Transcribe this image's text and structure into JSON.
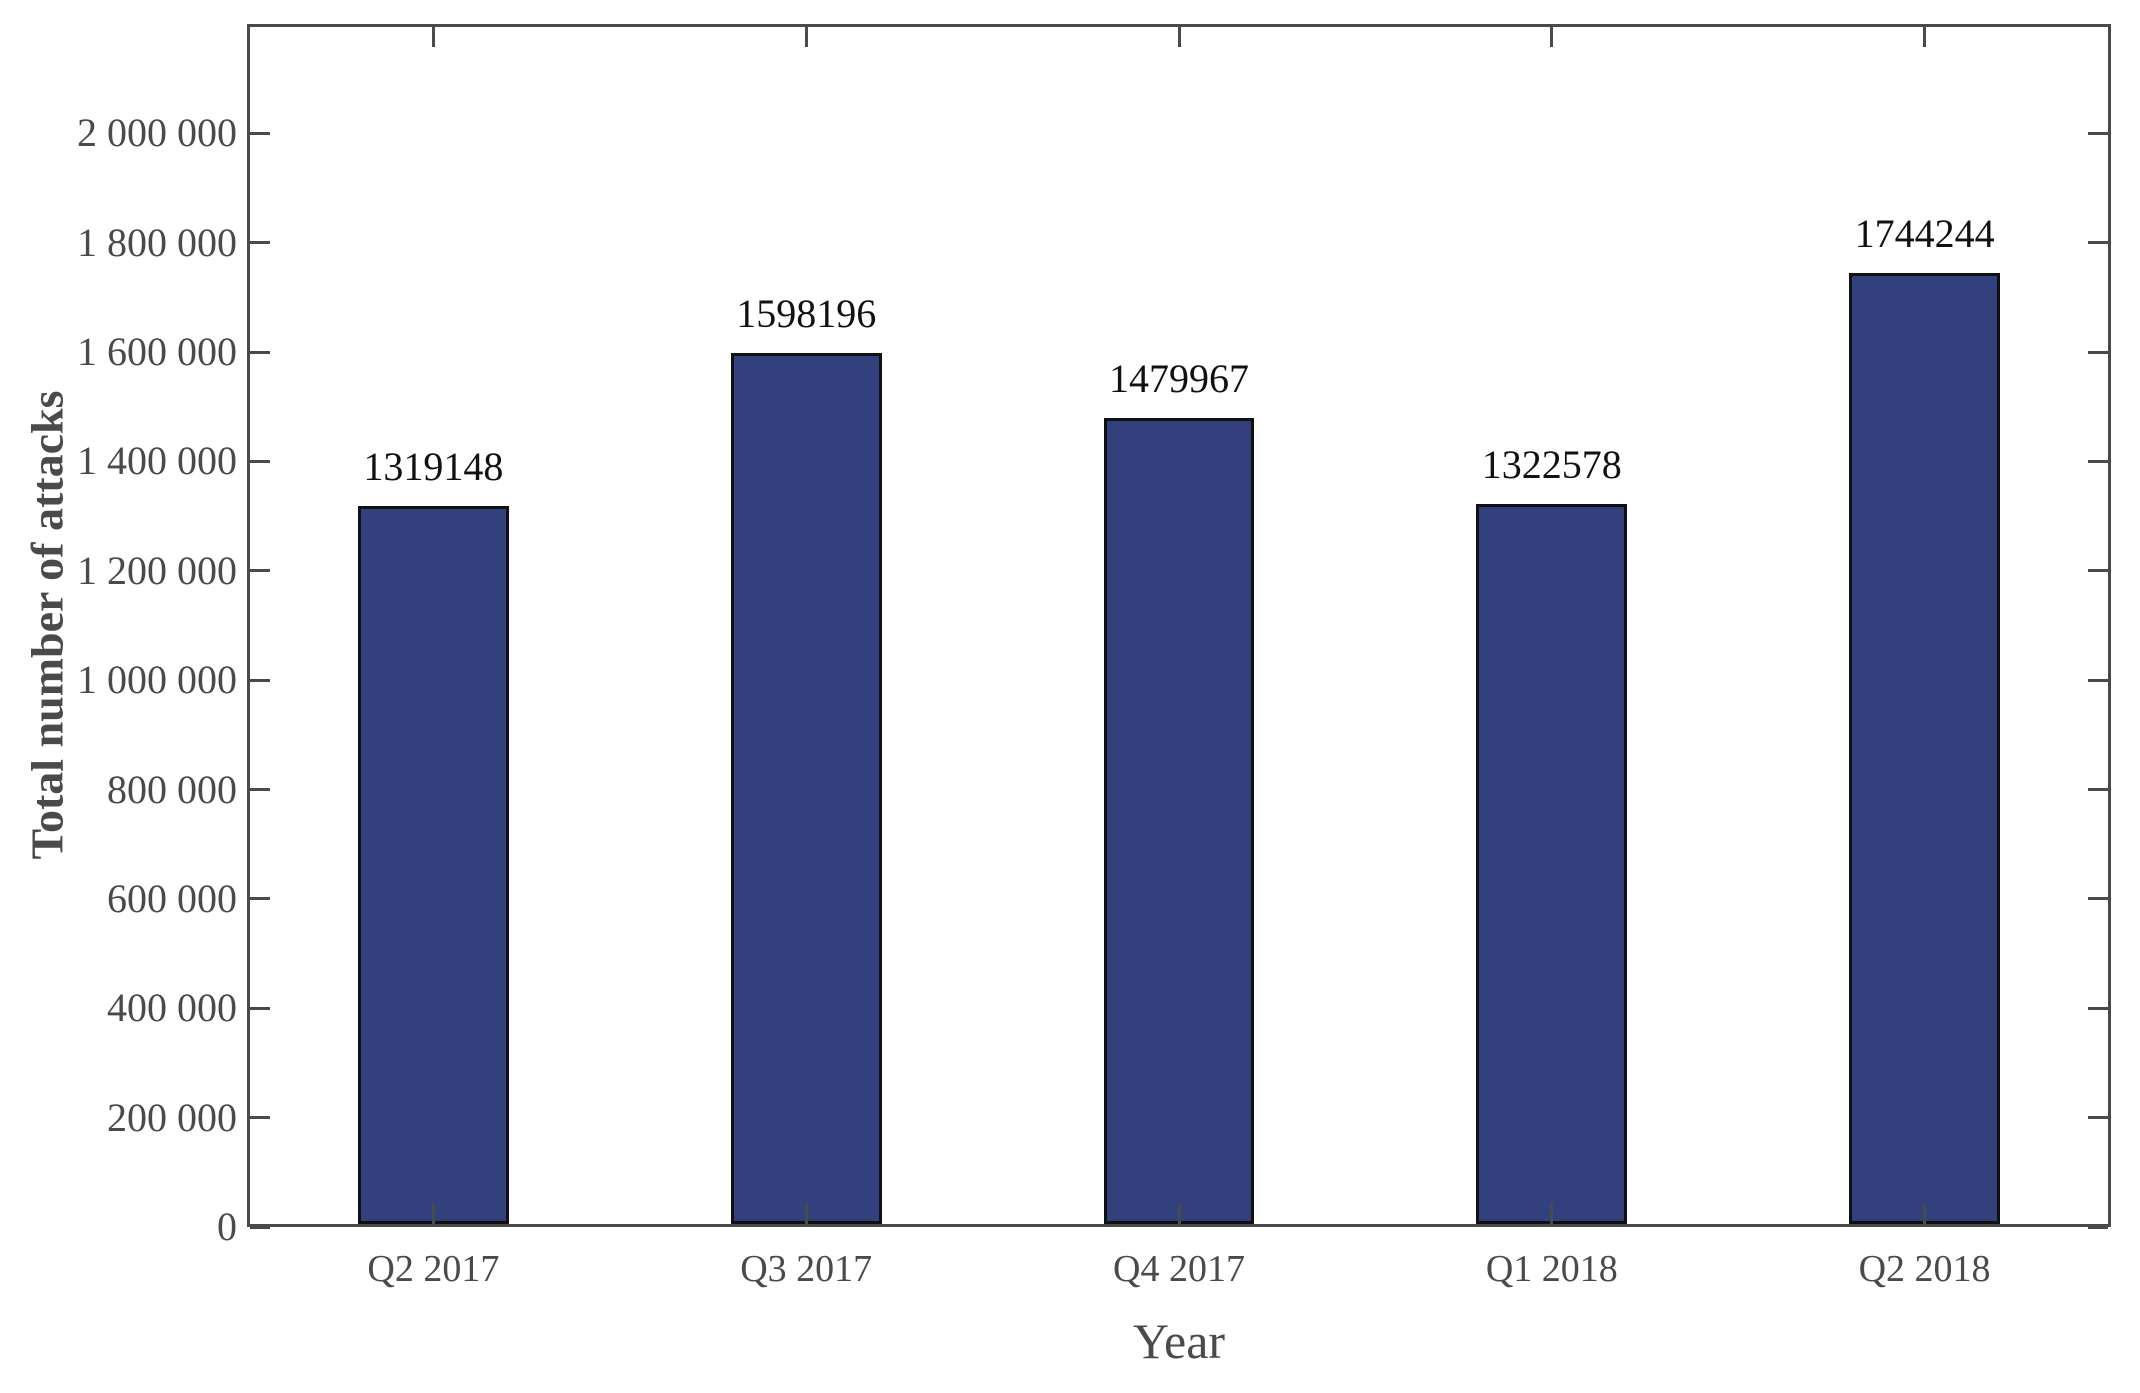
{
  "chart_data": {
    "type": "bar",
    "title": "",
    "categories": [
      "Q2 2017",
      "Q3 2017",
      "Q4 2017",
      "Q1 2018",
      "Q2 2018"
    ],
    "values": [
      1319148,
      1598196,
      1479967,
      1322578,
      1744244
    ],
    "bar_labels": [
      "1319148",
      "1598196",
      "1479967",
      "1322578",
      "1744244"
    ],
    "xlabel": "Year",
    "ylabel": "Total number of attacks",
    "ylim": [
      0,
      2200000
    ],
    "ytick_values": [
      0,
      200000,
      400000,
      600000,
      800000,
      1000000,
      1200000,
      1400000,
      1600000,
      1800000,
      2000000
    ],
    "ytick_labels": [
      "0",
      "200 000",
      "400 000",
      "600 000",
      "800 000",
      "1 000 000",
      "1 200 000",
      "1 400 000",
      "1 600 000",
      "1 800 000",
      "2 000 000"
    ],
    "grid": false,
    "legend_position": "none",
    "bar_width_fraction": 0.405,
    "colors": {
      "bar_fill": "#33407E",
      "bar_edge": "#111111",
      "axis": "#4a4a4a",
      "tick_label": "#4a4a4a",
      "value_label": "#111111",
      "background": "#ffffff"
    }
  }
}
